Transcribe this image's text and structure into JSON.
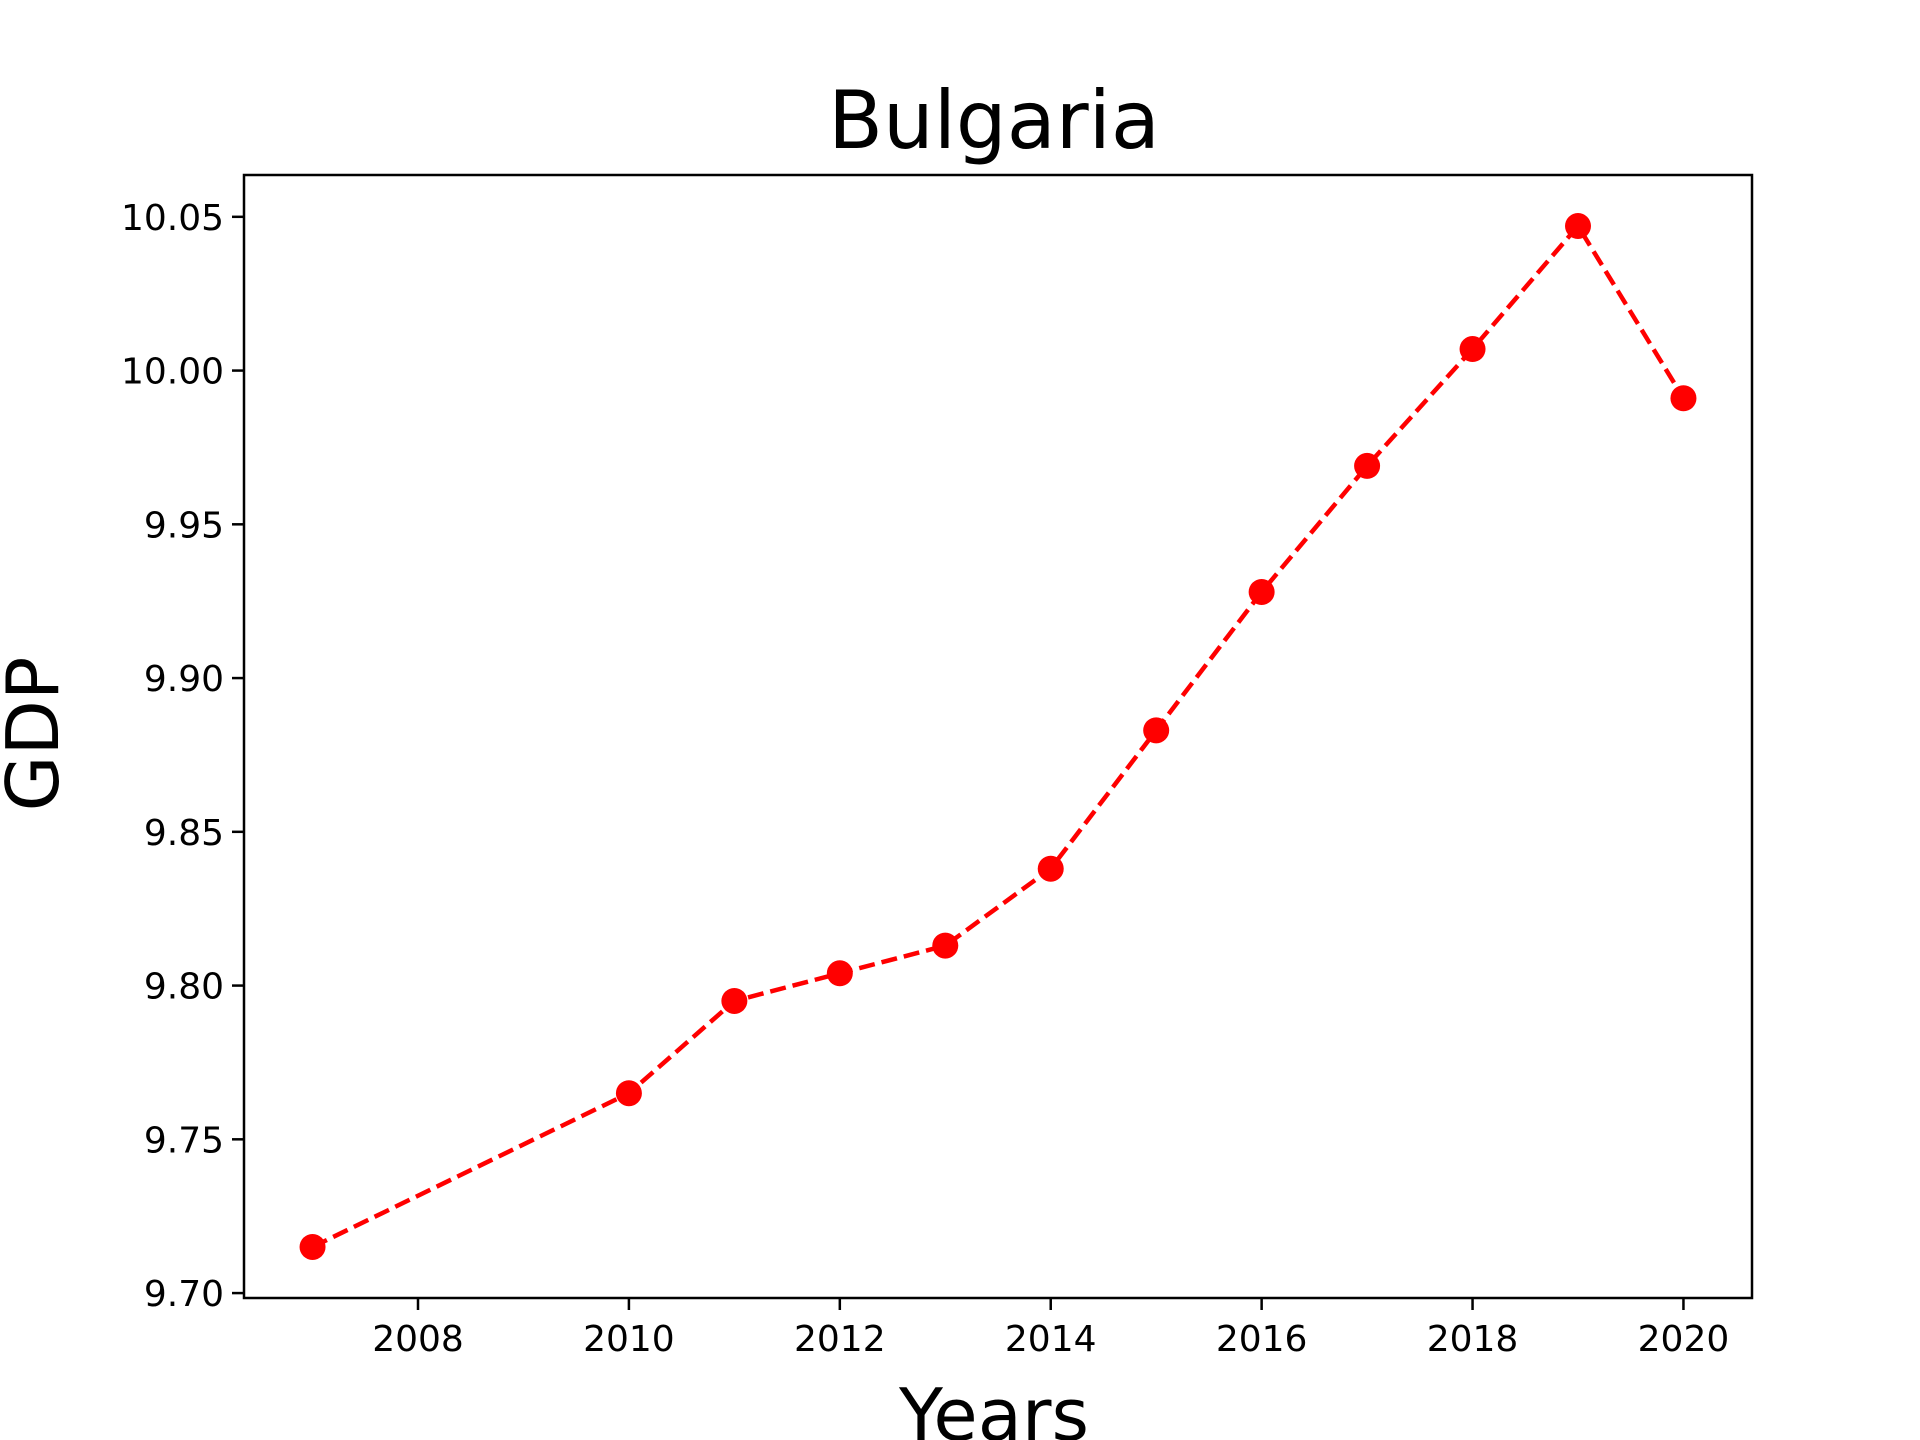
{
  "chart_data": {
    "type": "line",
    "title": "Bulgaria",
    "xlabel": "Years",
    "ylabel": "GDP",
    "x": [
      2007,
      2010,
      2011,
      2012,
      2013,
      2014,
      2015,
      2016,
      2017,
      2018,
      2019,
      2020
    ],
    "series": [
      {
        "values": [
          9.715,
          9.765,
          9.795,
          9.804,
          9.813,
          9.838,
          9.883,
          9.928,
          9.969,
          10.007,
          10.047,
          9.991
        ],
        "color": "#ff0000",
        "line_style": "dashed",
        "marker": "circle"
      }
    ],
    "xlim": [
      2006.35,
      2020.65
    ],
    "ylim": [
      9.6984,
      10.0636
    ],
    "xticks": [
      2008,
      2010,
      2012,
      2014,
      2016,
      2018,
      2020
    ],
    "xtick_labels": [
      "2008",
      "2010",
      "2012",
      "2014",
      "2016",
      "2018",
      "2020"
    ],
    "yticks": [
      9.7,
      9.75,
      9.8,
      9.85,
      9.9,
      9.95,
      10.0,
      10.05
    ],
    "ytick_labels": [
      "9.70",
      "9.75",
      "9.80",
      "9.85",
      "9.90",
      "9.95",
      "10.00",
      "10.05"
    ],
    "grid": false,
    "legend": false
  }
}
